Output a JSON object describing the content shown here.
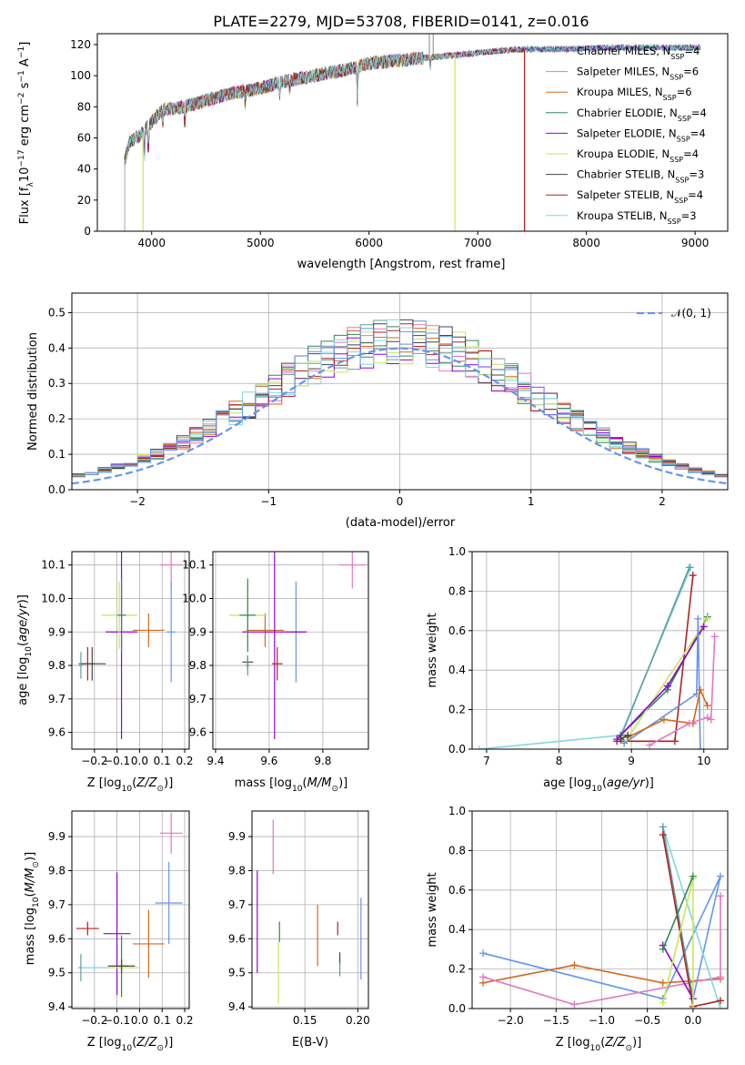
{
  "figure_title": "PLATE=2279, MJD=53708, FIBERID=0141, z=0.016",
  "colors": {
    "chabrier_miles": "#5f9ea0",
    "salpeter_miles": "#e377c2",
    "kroupa_miles": "#d2691e",
    "chabrier_elodie": "#2e8b57",
    "salpeter_elodie": "#9400d3",
    "kroupa_elodie": "#c8e65a",
    "chabrier_stelib": "#444444",
    "salpeter_stelib": "#b22222",
    "kroupa_stelib": "#7fd8e0",
    "grid": "#b0b0b0",
    "gaussian": "#6495ed"
  },
  "chart_data": [
    {
      "id": "spectrum",
      "type": "line",
      "title": "",
      "xlabel": "wavelength [Angstrom, rest frame]",
      "ylabel": "Flux [f_λ 10^-17 erg cm^-2 s^-1 A^-1]",
      "xlim": [
        3500,
        9300
      ],
      "ylim": [
        0,
        127
      ],
      "xticks": [
        4000,
        5000,
        6000,
        7000,
        8000,
        9000
      ],
      "yticks": [
        0,
        20,
        40,
        60,
        80,
        100,
        120
      ],
      "grid": false,
      "legend_position": "top-right",
      "legend": [
        {
          "label": "Chabrier MILES, N",
          "sub": "SSP",
          "rest": "=4",
          "color": "#5f9ea0"
        },
        {
          "label": "Salpeter MILES, N",
          "sub": "SSP",
          "rest": "=6",
          "color": "#e377c2"
        },
        {
          "label": "Kroupa MILES, N",
          "sub": "SSP",
          "rest": "=6",
          "color": "#d2691e"
        },
        {
          "label": "Chabrier ELODIE, N",
          "sub": "SSP",
          "rest": "=4",
          "color": "#2e8b57"
        },
        {
          "label": "Salpeter ELODIE, N",
          "sub": "SSP",
          "rest": "=4",
          "color": "#9400d3"
        },
        {
          "label": "Kroupa ELODIE, N",
          "sub": "SSP",
          "rest": "=4",
          "color": "#c8e65a"
        },
        {
          "label": "Chabrier STELIB, N",
          "sub": "SSP",
          "rest": "=3",
          "color": "#444444"
        },
        {
          "label": "Salpeter STELIB, N",
          "sub": "SSP",
          "rest": "=4",
          "color": "#b22222"
        },
        {
          "label": "Kroupa STELIB, N",
          "sub": "SSP",
          "rest": "=3",
          "color": "#7fd8e0"
        }
      ],
      "continuum": {
        "x": [
          3750,
          3800,
          3900,
          4000,
          4100,
          4300,
          4500,
          4700,
          5000,
          5200,
          5500,
          5800,
          6000,
          6300,
          6600,
          6900,
          7200,
          7400,
          7800,
          8200,
          8600,
          9000
        ],
        "y": [
          45,
          58,
          62,
          70,
          78,
          80,
          84,
          88,
          92,
          96,
          100,
          104,
          108,
          110,
          112,
          114,
          116,
          117,
          117,
          118,
          118,
          118
        ]
      },
      "absorption_features": [
        {
          "x": 3934,
          "depth": 22
        },
        {
          "x": 3969,
          "depth": 20
        },
        {
          "x": 4102,
          "depth": 10
        },
        {
          "x": 4305,
          "depth": 15
        },
        {
          "x": 4861,
          "depth": 10
        },
        {
          "x": 5175,
          "depth": 14
        },
        {
          "x": 5270,
          "depth": 8
        },
        {
          "x": 5893,
          "depth": 26
        },
        {
          "x": 6563,
          "depth": 8
        }
      ],
      "model_cutoffs": [
        {
          "color": "#c8e65a",
          "x_end": 6790
        },
        {
          "color": "#d2691e",
          "x_end": 7430
        },
        {
          "color": "#b22222",
          "x_end": 7430
        },
        {
          "color": "#c8e65a",
          "x_start": 3920
        }
      ]
    },
    {
      "id": "residual_hist",
      "type": "histogram",
      "xlabel": "(data-model)/error",
      "ylabel": "Normed distribution",
      "xlim": [
        -2.5,
        2.5
      ],
      "ylim": [
        0,
        0.555
      ],
      "xticks": [
        -2,
        -1,
        0,
        1,
        2
      ],
      "xticklabels": [
        "−2",
        "−1",
        "0",
        "1",
        "2"
      ],
      "yticks": [
        0,
        0.1,
        0.2,
        0.3,
        0.4,
        0.5
      ],
      "yticklabels": [
        "0.0",
        "0.1",
        "0.2",
        "0.3",
        "0.4",
        "0.5"
      ],
      "grid": true,
      "legend_position": "top-right",
      "legend": [
        {
          "label": "𝒩(0, 1)",
          "color": "#6495ed",
          "dash": true
        }
      ],
      "bin_width": 0.1,
      "envelope_scale": 1.0
    },
    {
      "id": "age_vs_Z",
      "type": "scatter",
      "xlabel": "Z [log10(Z/Z☉)]",
      "ylabel": "age [log10(age/yr)]",
      "xlim": [
        -0.3,
        0.22
      ],
      "ylim": [
        9.55,
        10.14
      ],
      "xticks": [
        -0.2,
        -0.1,
        0.0,
        0.1,
        0.2
      ],
      "xticklabels": [
        "−0.2",
        "−0.1",
        "0.0",
        "0.1",
        "0.2"
      ],
      "yticks": [
        9.6,
        9.7,
        9.8,
        9.9,
        10.0,
        10.1
      ],
      "yticklabels": [
        "9.6",
        "9.7",
        "9.8",
        "9.9",
        "10.0",
        "10.1"
      ],
      "grid": true,
      "points": [
        {
          "color": "#e377c2",
          "x": 0.14,
          "y": 10.1,
          "xerr": 0.05,
          "yerr": 0.07
        },
        {
          "color": "#6495ed",
          "x": 0.14,
          "y": 9.9,
          "xerr": 0.02,
          "yerr": 0.15
        },
        {
          "color": "#d2691e",
          "x": 0.04,
          "y": 9.905,
          "xerr": 0.07,
          "yerr": 0.05
        },
        {
          "color": "#9400d3",
          "x": -0.08,
          "y": 9.9,
          "xerr": 0.07,
          "yerr": 0.32
        },
        {
          "color": "#c8e65a",
          "x": -0.09,
          "y": 9.95,
          "xerr": 0.08,
          "yerr": 0.1
        },
        {
          "color": "#2e8b57",
          "x": -0.08,
          "y": 9.95,
          "xerr": 0.02,
          "yerr": 0.11
        },
        {
          "color": "#b22222",
          "x": -0.23,
          "y": 9.805,
          "xerr": 0.03,
          "yerr": 0.05
        },
        {
          "color": "#444444",
          "x": -0.21,
          "y": 9.805,
          "xerr": 0.06,
          "yerr": 0.05
        },
        {
          "color": "#5f9ea0",
          "x": -0.26,
          "y": 9.8,
          "xerr": 0.01,
          "yerr": 0.04
        }
      ]
    },
    {
      "id": "age_vs_mass",
      "type": "scatter",
      "xlabel": "mass [log10(M/M☉)]",
      "ylabel": "",
      "xlim": [
        9.39,
        9.97
      ],
      "ylim": [
        9.55,
        10.14
      ],
      "xticks": [
        9.4,
        9.6,
        9.8
      ],
      "xticklabels": [
        "9.4",
        "9.6",
        "9.8"
      ],
      "yticks": [
        9.6,
        9.7,
        9.8,
        9.9,
        10.0,
        10.1
      ],
      "yticklabels": [
        "9.6",
        "9.7",
        "9.8",
        "9.9",
        "10.0",
        "10.1"
      ],
      "grid": true,
      "points": [
        {
          "color": "#e377c2",
          "x": 9.91,
          "y": 10.1,
          "xerr": 0.05,
          "yerr": 0.07
        },
        {
          "color": "#6495ed",
          "x": 9.7,
          "y": 9.9,
          "xerr": 0.01,
          "yerr": 0.15
        },
        {
          "color": "#d2691e",
          "x": 9.585,
          "y": 9.905,
          "xerr": 0.07,
          "yerr": 0.05
        },
        {
          "color": "#9400d3",
          "x": 9.62,
          "y": 9.9,
          "xerr": 0.12,
          "yerr": 0.32
        },
        {
          "color": "#c8e65a",
          "x": 9.52,
          "y": 9.95,
          "xerr": 0.07,
          "yerr": 0.1
        },
        {
          "color": "#2e8b57",
          "x": 9.52,
          "y": 9.95,
          "xerr": 0.03,
          "yerr": 0.11
        },
        {
          "color": "#b22222",
          "x": 9.63,
          "y": 9.805,
          "xerr": 0.02,
          "yerr": 0.05
        },
        {
          "color": "#444444",
          "x": 9.52,
          "y": 9.81,
          "xerr": 0.02,
          "yerr": 0.02
        },
        {
          "color": "#5f9ea0",
          "x": 9.52,
          "y": 9.8,
          "xerr": 0.01,
          "yerr": 0.03
        }
      ]
    },
    {
      "id": "weight_vs_age",
      "type": "line",
      "xlabel": "age [log10(age/yr)]",
      "ylabel": "mass weight",
      "xlim": [
        6.8,
        10.33
      ],
      "ylim": [
        0,
        1.0
      ],
      "xticks": [
        7,
        8,
        9,
        10
      ],
      "yticks": [
        0,
        0.2,
        0.4,
        0.6,
        0.8,
        1.0
      ],
      "yticklabels": [
        "0.0",
        "0.2",
        "0.4",
        "0.6",
        "0.8",
        "1.0"
      ],
      "grid": true,
      "series": [
        {
          "color": "#7fd8e0",
          "x": [
            6.9,
            8.85,
            9.82
          ],
          "y": [
            0.0,
            0.07,
            0.92
          ]
        },
        {
          "color": "#5f9ea0",
          "x": [
            8.85,
            9.8
          ],
          "y": [
            0.06,
            0.92
          ]
        },
        {
          "color": "#b22222",
          "x": [
            8.8,
            9.6,
            9.85
          ],
          "y": [
            0.04,
            0.04,
            0.88
          ]
        },
        {
          "color": "#2e8b57",
          "x": [
            8.85,
            9.5,
            10.05
          ],
          "y": [
            0.07,
            0.3,
            0.67
          ]
        },
        {
          "color": "#c8e65a",
          "x": [
            8.9,
            10.05
          ],
          "y": [
            0.03,
            0.66
          ]
        },
        {
          "color": "#9400d3",
          "x": [
            8.8,
            9.5,
            10.0
          ],
          "y": [
            0.05,
            0.32,
            0.62
          ]
        },
        {
          "color": "#6495ed",
          "x": [
            8.9,
            9.9,
            9.92,
            9.95
          ],
          "y": [
            0.03,
            0.28,
            0.66,
            0.0
          ]
        },
        {
          "color": "#d2691e",
          "x": [
            8.95,
            9.45,
            9.85,
            9.95,
            10.05
          ],
          "y": [
            0.06,
            0.15,
            0.13,
            0.3,
            0.22
          ]
        },
        {
          "color": "#e377c2",
          "x": [
            9.25,
            9.8,
            10.05,
            10.1,
            10.15
          ],
          "y": [
            0.02,
            0.13,
            0.16,
            0.15,
            0.57
          ]
        },
        {
          "color": "#444444",
          "x": [
            8.85,
            8.95
          ],
          "y": [
            0.05,
            0.07
          ]
        }
      ]
    },
    {
      "id": "mass_vs_Z",
      "type": "scatter",
      "xlabel": "Z [log10(Z/Z☉)]",
      "ylabel": "mass [log10(M/M☉)]",
      "xlim": [
        -0.3,
        0.22
      ],
      "ylim": [
        9.395,
        9.975
      ],
      "xticks": [
        -0.2,
        -0.1,
        0.0,
        0.1,
        0.2
      ],
      "xticklabels": [
        "−0.2",
        "−0.1",
        "0.0",
        "0.1",
        "0.2"
      ],
      "yticks": [
        9.4,
        9.5,
        9.6,
        9.7,
        9.8,
        9.9
      ],
      "yticklabels": [
        "9.4",
        "9.5",
        "9.6",
        "9.7",
        "9.8",
        "9.9"
      ],
      "grid": true,
      "points": [
        {
          "color": "#e377c2",
          "x": 0.14,
          "y": 9.91,
          "xerr": 0.05,
          "yerr": 0.06
        },
        {
          "color": "#6495ed",
          "x": 0.13,
          "y": 9.705,
          "xerr": 0.06,
          "yerr": 0.12
        },
        {
          "color": "#d2691e",
          "x": 0.04,
          "y": 9.585,
          "xerr": 0.07,
          "yerr": 0.1
        },
        {
          "color": "#9400d3",
          "x": -0.1,
          "y": 9.615,
          "xerr": 0.06,
          "yerr": 0.18
        },
        {
          "color": "#c8e65a",
          "x": -0.08,
          "y": 9.515,
          "xerr": 0.08,
          "yerr": 0.09
        },
        {
          "color": "#2e8b57",
          "x": -0.08,
          "y": 9.52,
          "xerr": 0.03,
          "yerr": 0.09
        },
        {
          "color": "#b22222",
          "x": -0.23,
          "y": 9.63,
          "xerr": 0.05,
          "yerr": 0.02
        },
        {
          "color": "#444444",
          "x": -0.08,
          "y": 9.52,
          "xerr": 0.06,
          "yerr": 0.02
        },
        {
          "color": "#5f9ea0",
          "x": -0.26,
          "y": 9.515,
          "xerr": 0.01,
          "yerr": 0.04
        },
        {
          "color": "#7fd8e0",
          "x": -0.2,
          "y": 9.515,
          "xerr": 0.06,
          "yerr": 0.01
        }
      ]
    },
    {
      "id": "mass_vs_ebv",
      "type": "scatter",
      "xlabel": "E(B-V)",
      "ylabel": "",
      "xlim": [
        0.1,
        0.21
      ],
      "ylim": [
        9.395,
        9.975
      ],
      "xticks": [
        0.15,
        0.2
      ],
      "xticklabels": [
        "0.15",
        "0.20"
      ],
      "yticks": [
        9.4,
        9.5,
        9.6,
        9.7,
        9.8,
        9.9
      ],
      "yticklabels": [
        "9.4",
        "9.5",
        "9.6",
        "9.7",
        "9.8",
        "9.9"
      ],
      "grid": true,
      "points": [
        {
          "color": "#e377c2",
          "x": 0.12,
          "y": 9.87,
          "xerr": 0,
          "yerr": 0.08
        },
        {
          "color": "#9400d3",
          "x": 0.105,
          "y": 9.65,
          "xerr": 0,
          "yerr": 0.15
        },
        {
          "color": "#c8e65a",
          "x": 0.125,
          "y": 9.5,
          "xerr": 0,
          "yerr": 0.09
        },
        {
          "color": "#2e8b57",
          "x": 0.126,
          "y": 9.62,
          "xerr": 0,
          "yerr": 0.03
        },
        {
          "color": "#d2691e",
          "x": 0.162,
          "y": 9.61,
          "xerr": 0,
          "yerr": 0.09
        },
        {
          "color": "#b22222",
          "x": 0.181,
          "y": 9.63,
          "xerr": 0,
          "yerr": 0.02
        },
        {
          "color": "#444444",
          "x": 0.183,
          "y": 9.54,
          "xerr": 0,
          "yerr": 0.02
        },
        {
          "color": "#5f9ea0",
          "x": 0.183,
          "y": 9.51,
          "xerr": 0,
          "yerr": 0.02
        },
        {
          "color": "#6495ed",
          "x": 0.203,
          "y": 9.6,
          "xerr": 0,
          "yerr": 0.12
        }
      ]
    },
    {
      "id": "weight_vs_Z",
      "type": "line",
      "xlabel": "Z [log10(Z/Z☉)]",
      "ylabel": "mass weight",
      "xlim": [
        -2.42,
        0.38
      ],
      "ylim": [
        0,
        1.0
      ],
      "xticks": [
        -2.0,
        -1.5,
        -1.0,
        -0.5,
        0.0
      ],
      "xticklabels": [
        "−2.0",
        "−1.5",
        "−1.0",
        "−0.5",
        "0.0"
      ],
      "yticks": [
        0,
        0.2,
        0.4,
        0.6,
        0.8,
        1.0
      ],
      "yticklabels": [
        "0.0",
        "0.2",
        "0.4",
        "0.6",
        "0.8",
        "1.0"
      ],
      "grid": true,
      "series": [
        {
          "color": "#6495ed",
          "x": [
            -2.3,
            -0.33,
            0.3,
            0.0
          ],
          "y": [
            0.28,
            0.05,
            0.67,
            0.05
          ]
        },
        {
          "color": "#d2691e",
          "x": [
            -2.3,
            -1.3,
            -0.33,
            0.3
          ],
          "y": [
            0.13,
            0.22,
            0.13,
            0.15
          ]
        },
        {
          "color": "#e377c2",
          "x": [
            -2.3,
            -1.3,
            0.3,
            0.3
          ],
          "y": [
            0.16,
            0.02,
            0.16,
            0.57
          ]
        },
        {
          "color": "#7fd8e0",
          "x": [
            -0.33,
            0.3
          ],
          "y": [
            0.92,
            0.0
          ]
        },
        {
          "color": "#5f9ea0",
          "x": [
            -0.33,
            0.0
          ],
          "y": [
            0.92,
            0.05
          ]
        },
        {
          "color": "#b22222",
          "x": [
            -0.33,
            0.0,
            0.3
          ],
          "y": [
            0.88,
            0.01,
            0.04
          ]
        },
        {
          "color": "#9400d3",
          "x": [
            -0.33,
            0.0
          ],
          "y": [
            0.32,
            0.05
          ]
        },
        {
          "color": "#c8e65a",
          "x": [
            -0.33,
            0.0,
            0.0
          ],
          "y": [
            0.03,
            0.66,
            0.0
          ]
        },
        {
          "color": "#2e8b57",
          "x": [
            -0.33,
            0.0
          ],
          "y": [
            0.3,
            0.67
          ]
        }
      ]
    }
  ]
}
